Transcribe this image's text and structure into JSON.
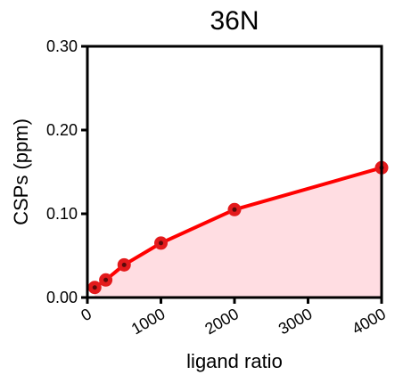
{
  "chart_data": {
    "type": "line",
    "title": "36N",
    "xlabel": "ligand ratio",
    "ylabel": "CSPs (ppm)",
    "xlim": [
      0,
      4000
    ],
    "ylim": [
      0,
      0.3
    ],
    "xticks": [
      "0",
      "1000",
      "2000",
      "3000",
      "4000"
    ],
    "yticks": [
      "0.00",
      "0.10",
      "0.20",
      "0.30"
    ],
    "grid": false,
    "area_fill": true,
    "series": [
      {
        "x": [
          100,
          250,
          500,
          1000,
          2000,
          4000
        ],
        "y": [
          0.012,
          0.021,
          0.039,
          0.065,
          0.105,
          0.155
        ]
      }
    ],
    "colors": {
      "line": "#ff0000",
      "marker": "#e31a1c",
      "marker_center": "#5a0a0a",
      "fill": "#ffdde2",
      "axis": "#000000"
    }
  }
}
